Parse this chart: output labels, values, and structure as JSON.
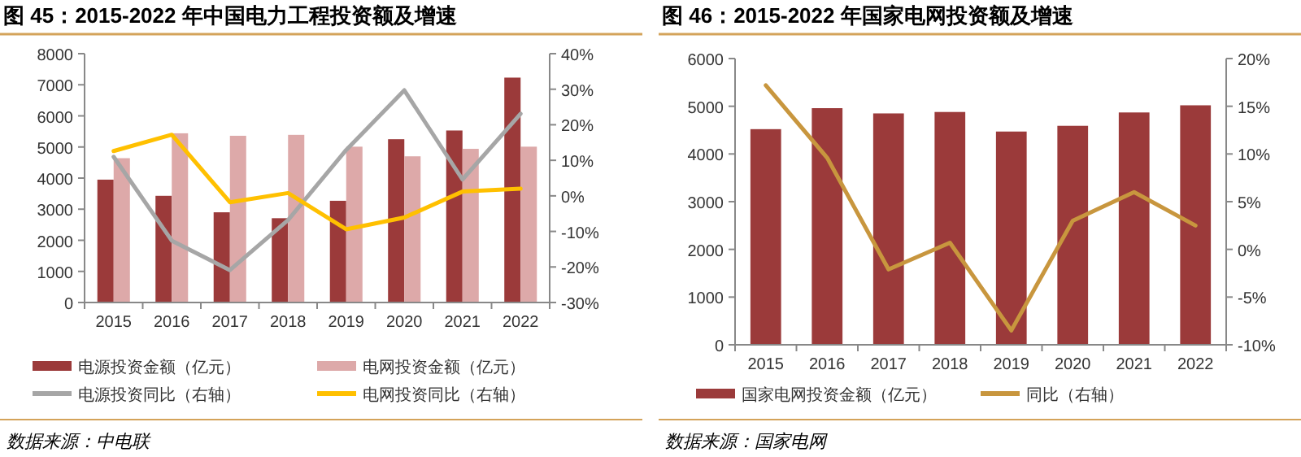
{
  "chart_data": [
    {
      "type": "bar",
      "title": "图 45：2015-2022 年中国电力工程投资额及增速",
      "categories": [
        "2015",
        "2016",
        "2017",
        "2018",
        "2019",
        "2020",
        "2021",
        "2022"
      ],
      "series": [
        {
          "name": "电源投资金额（亿元）",
          "color": "#9b3a3a",
          "values": [
            3950,
            3430,
            2900,
            2710,
            3270,
            5250,
            5530,
            7230
          ]
        },
        {
          "name": "电网投资金额（亿元）",
          "color": "#dda9a9",
          "values": [
            4640,
            5440,
            5360,
            5390,
            5010,
            4700,
            4940,
            5010
          ]
        },
        {
          "name": "电源投资同比（右轴）",
          "type": "line",
          "axis": "y2",
          "color": "#a6a6a6",
          "values": [
            11.0,
            -12.6,
            -20.9,
            -6.8,
            12.9,
            29.7,
            4.6,
            23.1
          ]
        },
        {
          "name": "电网投资同比（右轴）",
          "type": "line",
          "axis": "y2",
          "color": "#ffc000",
          "values": [
            12.6,
            17.2,
            -1.8,
            0.8,
            -9.4,
            -6.1,
            1.2,
            2.0
          ]
        }
      ],
      "ylim": [
        0,
        8000
      ],
      "yticks": [
        0,
        1000,
        2000,
        3000,
        4000,
        5000,
        6000,
        7000,
        8000
      ],
      "y2lim": [
        -30,
        40
      ],
      "y2ticks": [
        {
          "value": -30,
          "label": "-30%"
        },
        {
          "value": -20,
          "label": "-20%"
        },
        {
          "value": -10,
          "label": "-10%"
        },
        {
          "value": 0,
          "label": "0%"
        },
        {
          "value": 10,
          "label": "10%"
        },
        {
          "value": 20,
          "label": "20%"
        },
        {
          "value": 30,
          "label": "30%"
        },
        {
          "value": 40,
          "label": "40%"
        }
      ],
      "grid": false,
      "legend": "bottom",
      "annotations": [
        "数据来源：中电联"
      ]
    },
    {
      "type": "bar",
      "title": "图 46：2015-2022 年国家电网投资额及增速",
      "categories": [
        "2015",
        "2016",
        "2017",
        "2018",
        "2019",
        "2020",
        "2021",
        "2022"
      ],
      "series": [
        {
          "name": "国家电网投资金额（亿元）",
          "color": "#9b3a3a",
          "values": [
            4520,
            4960,
            4850,
            4880,
            4470,
            4590,
            4870,
            5020
          ]
        },
        {
          "name": "同比（右轴）",
          "type": "line",
          "axis": "y2",
          "color": "#c8963e",
          "values": [
            17.2,
            9.6,
            -2.1,
            0.7,
            -8.5,
            3.0,
            6.0,
            2.5
          ]
        }
      ],
      "ylim": [
        0,
        6000
      ],
      "yticks": [
        0,
        1000,
        2000,
        3000,
        4000,
        5000,
        6000
      ],
      "y2lim": [
        -10,
        20
      ],
      "y2ticks": [
        {
          "value": -10,
          "label": "-10%"
        },
        {
          "value": -5,
          "label": "-5%"
        },
        {
          "value": 0,
          "label": "0%"
        },
        {
          "value": 5,
          "label": "5%"
        },
        {
          "value": 10,
          "label": "10%"
        },
        {
          "value": 15,
          "label": "15%"
        },
        {
          "value": 20,
          "label": "20%"
        }
      ],
      "grid": false,
      "legend": "bottom",
      "annotations": [
        "数据来源：国家电网"
      ]
    }
  ]
}
